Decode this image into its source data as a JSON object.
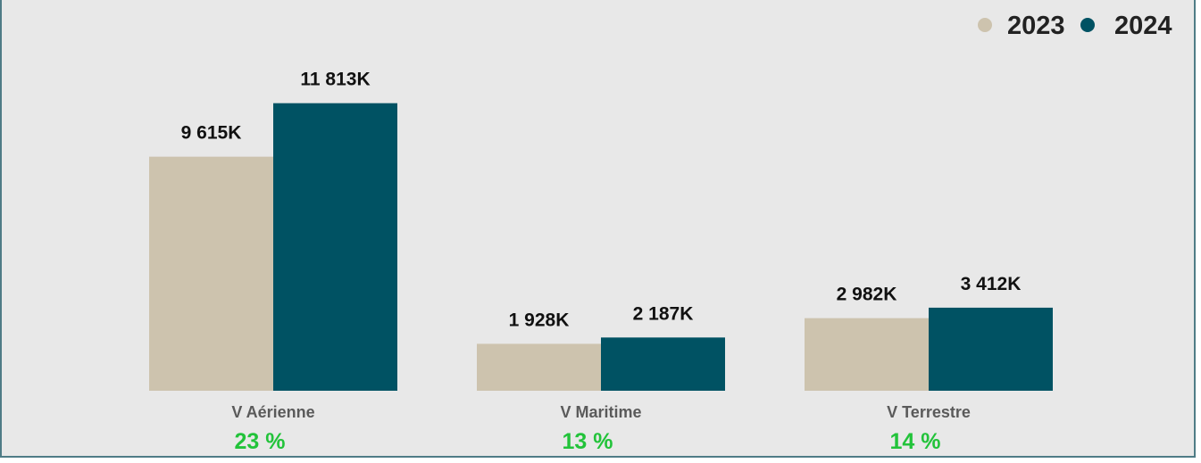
{
  "chart_data": {
    "type": "bar",
    "categories": [
      "V Aérienne",
      "V Maritime",
      "V Terrestre"
    ],
    "series": [
      {
        "name": "2023",
        "color": "#cdc3ae",
        "values": [
          9615,
          1928,
          2982
        ],
        "labels": [
          "9 615K",
          "1 928K",
          "2 982K"
        ]
      },
      {
        "name": "2024",
        "color": "#005263",
        "values": [
          11813,
          2187,
          3412
        ],
        "labels": [
          "11 813K",
          "2 187K",
          "3 412K"
        ]
      }
    ],
    "growth_labels": [
      "23 %",
      "13 %",
      "14 %"
    ],
    "growth_color": "#22c33a",
    "ylim": [
      0,
      14000
    ],
    "legend_position": "top-right",
    "grid": false,
    "title": "",
    "xlabel": "",
    "ylabel": ""
  }
}
